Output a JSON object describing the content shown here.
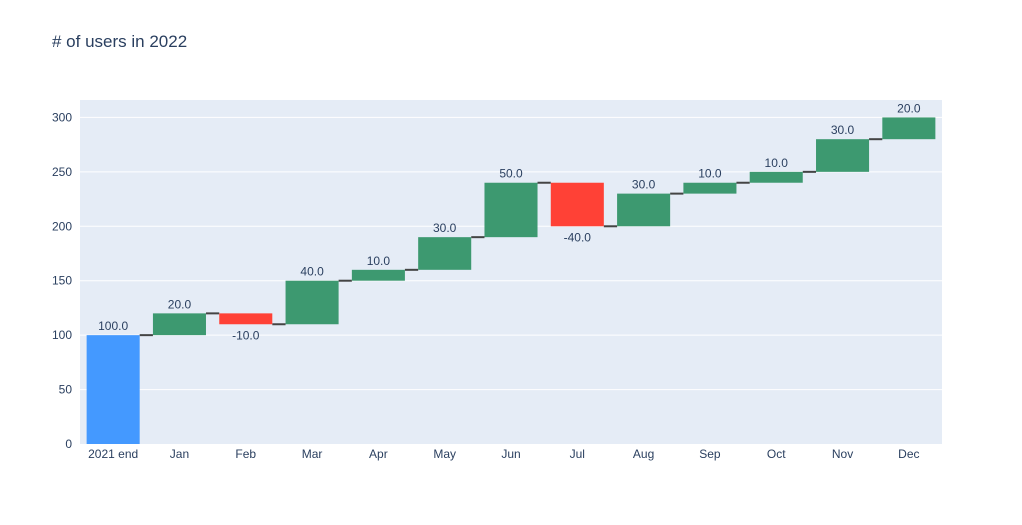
{
  "chart_data": {
    "type": "waterfall",
    "title": "# of users in 2022",
    "xlabel": "",
    "ylabel": "",
    "categories": [
      "2021 end",
      "Jan",
      "Feb",
      "Mar",
      "Apr",
      "May",
      "Jun",
      "Jul",
      "Aug",
      "Sep",
      "Oct",
      "Nov",
      "Dec"
    ],
    "values": [
      100,
      20,
      -10,
      40,
      10,
      30,
      50,
      -40,
      30,
      10,
      10,
      30,
      20
    ],
    "measures": [
      "absolute",
      "relative",
      "relative",
      "relative",
      "relative",
      "relative",
      "relative",
      "relative",
      "relative",
      "relative",
      "relative",
      "relative",
      "relative"
    ],
    "data_labels": [
      "100.0",
      "20.0",
      "-10.0",
      "40.0",
      "10.0",
      "30.0",
      "50.0",
      "-40.0",
      "30.0",
      "10.0",
      "10.0",
      "30.0",
      "20.0"
    ],
    "ylim": [
      0,
      316
    ],
    "yticks": [
      0,
      50,
      100,
      150,
      200,
      250,
      300
    ],
    "grid": true,
    "legend": false,
    "colors": {
      "absolute": "#4499ff",
      "increasing": "#3d9970",
      "decreasing": "#ff4136",
      "connector": "#444444",
      "plot_background": "#e5ecf6",
      "gridline": "#ffffff",
      "text": "#2a3f5f"
    }
  }
}
